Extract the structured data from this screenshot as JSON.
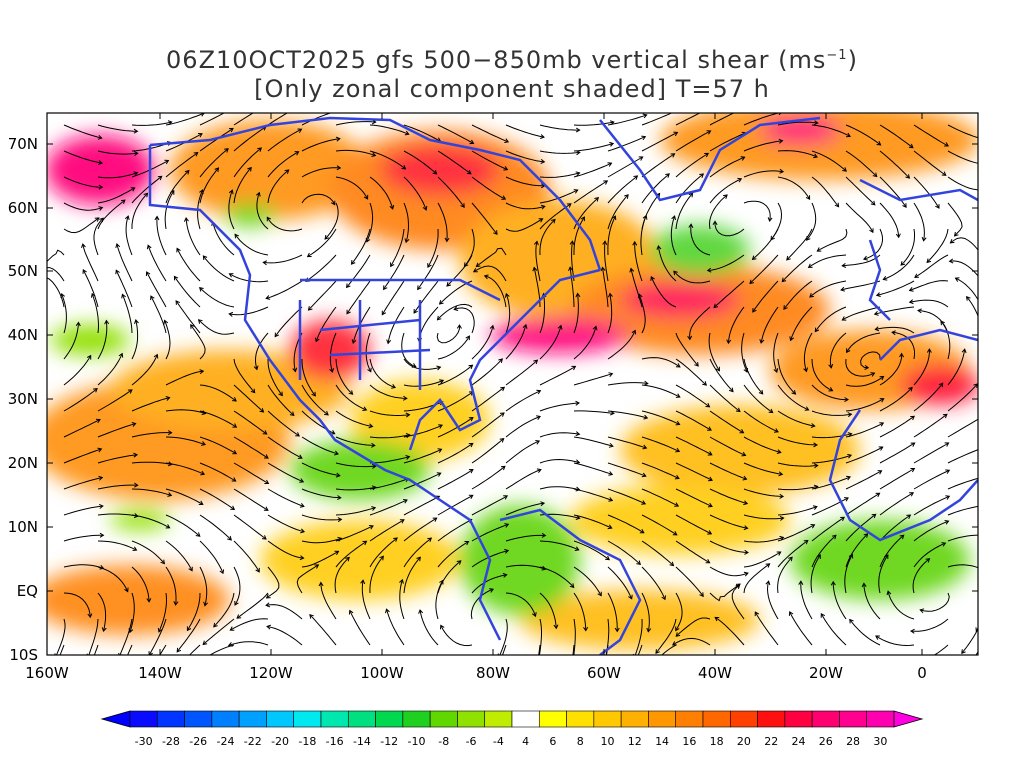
{
  "title": {
    "line1": "06Z10OCT2025 gfs 500−850mb vertical shear (ms",
    "line1_sup": "−1",
    "line1_end": ")",
    "line2": "[Only zonal component shaded] T=57 h"
  },
  "axes": {
    "lat_labels": [
      "70N",
      "60N",
      "50N",
      "40N",
      "30N",
      "20N",
      "10N",
      "EQ",
      "10S"
    ],
    "lon_labels": [
      "160W",
      "140W",
      "120W",
      "100W",
      "80W",
      "60W",
      "40W",
      "20W",
      "0"
    ]
  },
  "colorbar": {
    "labels": [
      "-30",
      "-28",
      "-26",
      "-24",
      "-22",
      "-20",
      "-18",
      "-16",
      "-14",
      "-12",
      "-10",
      "-8",
      "-6",
      "-4",
      "4",
      "6",
      "8",
      "10",
      "12",
      "14",
      "16",
      "18",
      "20",
      "22",
      "24",
      "26",
      "28",
      "30"
    ],
    "colors": [
      "#0a0aff",
      "#0036ff",
      "#0055ff",
      "#0080ff",
      "#00a0ff",
      "#00c8ff",
      "#00e8f0",
      "#00e8b0",
      "#00e080",
      "#00d850",
      "#20d020",
      "#60d800",
      "#90e000",
      "#c0ec00",
      "#ffffff",
      "#ffff00",
      "#ffe000",
      "#ffc800",
      "#ffb000",
      "#ff9800",
      "#ff8000",
      "#ff6800",
      "#ff4000",
      "#ff1010",
      "#ff0040",
      "#ff0070",
      "#ff0090",
      "#ff00b0"
    ],
    "low_color": "#0000ff",
    "high_color": "#ff00e0"
  },
  "colors": {
    "coastline": "#3344dd",
    "streamline": "#000000"
  }
}
